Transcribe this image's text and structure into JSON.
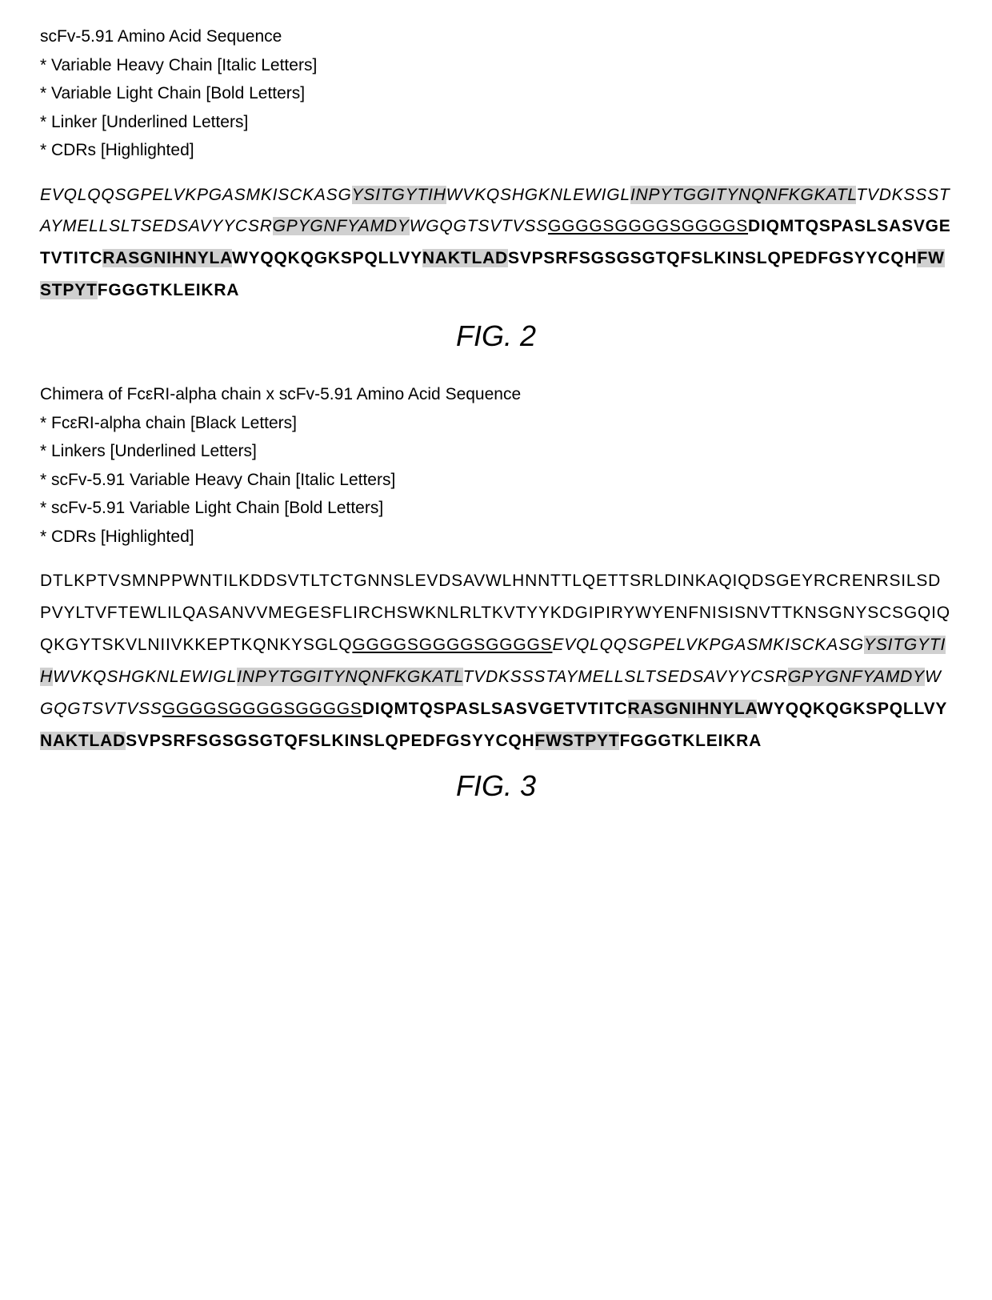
{
  "fig2": {
    "title": "scFv-5.91 Amino Acid Sequence",
    "legend": [
      "* Variable Heavy Chain [Italic Letters]",
      "* Variable Light Chain [Bold Letters]",
      "* Linker [Underlined Letters]",
      "* CDRs [Highlighted]"
    ],
    "caption": "FIG. 2",
    "segments": [
      {
        "text": "EVQLQQSGPELVKPGASMKISCKASG",
        "classes": "italic"
      },
      {
        "text": "YSITGYTIH",
        "classes": "italic highlight"
      },
      {
        "text": "WVKQSHGKNLEWIGL",
        "classes": "italic"
      },
      {
        "text": "INPYTGGITYNQNFKGKATL",
        "classes": "italic highlight"
      },
      {
        "text": "TVDKSSSTAYMELLSLTSEDSAVYYCSR",
        "classes": "italic"
      },
      {
        "text": "GPYGNFYAMDY",
        "classes": "italic highlight"
      },
      {
        "text": "WGQGTSVTVSS",
        "classes": "italic"
      },
      {
        "text": "GGGGSGGGGSGGGGS",
        "classes": "underline"
      },
      {
        "text": "DIQMTQSPASLSASVGETVTITC",
        "classes": "bold"
      },
      {
        "text": "RASGNIHNYLA",
        "classes": "bold highlight"
      },
      {
        "text": "WYQQKQGKSPQLLVY",
        "classes": "bold"
      },
      {
        "text": "NAKTLAD",
        "classes": "bold highlight"
      },
      {
        "text": "SVPSRFSGSGSGTQFSLKINSLQPEDFGSYYCQH",
        "classes": "bold"
      },
      {
        "text": "FWSTPYT",
        "classes": "bold highlight"
      },
      {
        "text": "FGGGTKLEIKRA",
        "classes": "bold"
      }
    ]
  },
  "fig3": {
    "title": "Chimera of FcεRI-alpha chain x scFv-5.91 Amino Acid Sequence",
    "legend": [
      "* FcεRI-alpha chain [Black Letters]",
      "* Linkers [Underlined Letters]",
      "* scFv-5.91 Variable Heavy Chain [Italic Letters]",
      "* scFv-5.91 Variable Light Chain [Bold Letters]",
      "* CDRs [Highlighted]"
    ],
    "caption": "FIG. 3",
    "segments": [
      {
        "text": "DTLKPTVSMNPPWNTILKDDSVTLTCTGNNSLEVDSAVWLHNNTTLQETTSRLDINKAQIQDSGEYRCRENRSILSDPVYLTVFTEWLILQASANVVMEGESFLIRCHSWKNLRLTKVTYYKDGIPIRYWYENFNISISNVTTKNSGNYSCSGQIQQKGYTSKVLNIIVKKEPTKQNKYSGLQ",
        "classes": ""
      },
      {
        "text": "GGGGSGGGGSGGGGS",
        "classes": "underline"
      },
      {
        "text": "EVQLQQSGPELVKPGASMKISCKASG",
        "classes": "italic"
      },
      {
        "text": "YSITGYTIH",
        "classes": "italic highlight"
      },
      {
        "text": "WVKQSHGKNLEWIGL",
        "classes": "italic"
      },
      {
        "text": "INPYTGGITYNQNFKGKATL",
        "classes": "italic highlight"
      },
      {
        "text": "TVDKSSSTAYMELLSLTSEDSAVYYCSR",
        "classes": "italic"
      },
      {
        "text": "GPYGNFYAMDY",
        "classes": "italic highlight"
      },
      {
        "text": "WGQGTSVTVSS",
        "classes": "italic"
      },
      {
        "text": "GGGGSGGGGSGGGGS",
        "classes": "underline"
      },
      {
        "text": "DIQMTQSPASLSASVGETVTITC",
        "classes": "bold"
      },
      {
        "text": "RASGNIHNYLA",
        "classes": "bold highlight"
      },
      {
        "text": "WYQQKQGKSPQLLVY",
        "classes": "bold"
      },
      {
        "text": "NAKTLAD",
        "classes": "bold highlight"
      },
      {
        "text": "SVPSRFSGSGSGTQFSLKINSLQPEDFGSYYCQH",
        "classes": "bold"
      },
      {
        "text": "FWSTPYT",
        "classes": "bold highlight"
      },
      {
        "text": "FGGGTKLEIKRA",
        "classes": "bold"
      }
    ]
  },
  "styling": {
    "highlight_color": "#d0d0d0",
    "background_color": "#ffffff",
    "text_color": "#000000",
    "body_font_size": 21,
    "caption_font_size": 36
  }
}
